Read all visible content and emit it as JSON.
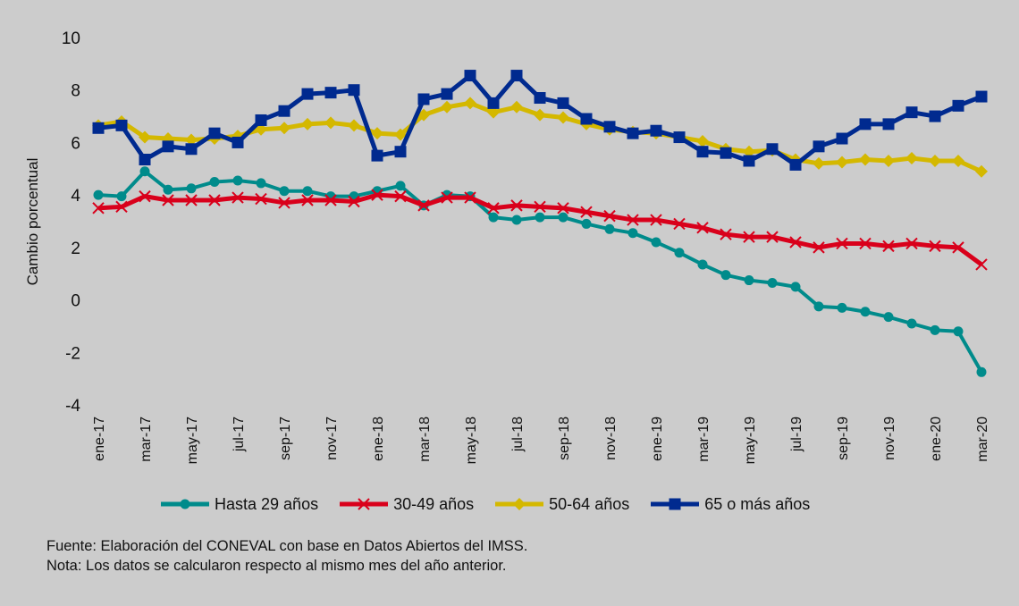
{
  "chart_data": {
    "type": "line",
    "title": "",
    "xlabel": "",
    "ylabel": "Cambio porcentual",
    "ylim": [
      -4,
      10
    ],
    "yticks": [
      "10",
      "8",
      "6",
      "4",
      "2",
      "0",
      "-2",
      "-4"
    ],
    "ytick_values": [
      10,
      8,
      6,
      4,
      2,
      0,
      -2,
      -4
    ],
    "grid": false,
    "legend_position": "bottom",
    "x": [
      "ene-17",
      "feb-17",
      "mar-17",
      "abr-17",
      "may-17",
      "jun-17",
      "jul-17",
      "ago-17",
      "sep-17",
      "oct-17",
      "nov-17",
      "dic-17",
      "ene-18",
      "feb-18",
      "mar-18",
      "abr-18",
      "may-18",
      "jun-18",
      "jul-18",
      "ago-18",
      "sep-18",
      "oct-18",
      "nov-18",
      "dic-18",
      "ene-19",
      "feb-19",
      "mar-19",
      "abr-19",
      "may-19",
      "jun-19",
      "jul-19",
      "ago-19",
      "sep-19",
      "oct-19",
      "nov-19",
      "dic-19",
      "ene-20",
      "feb-20",
      "mar-20"
    ],
    "xtick_labels": [
      "ene-17",
      "mar-17",
      "may-17",
      "jul-17",
      "sep-17",
      "nov-17",
      "ene-18",
      "mar-18",
      "may-18",
      "jul-18",
      "sep-18",
      "nov-18",
      "ene-19",
      "mar-19",
      "may-19",
      "jul-19",
      "sep-19",
      "nov-19",
      "ene-20",
      "mar-20"
    ],
    "series": [
      {
        "name": "Hasta 29 años",
        "color": "#008b8b",
        "marker": "circle",
        "values": [
          4.0,
          3.95,
          4.9,
          4.2,
          4.25,
          4.5,
          4.55,
          4.45,
          4.15,
          4.15,
          3.95,
          3.95,
          4.15,
          4.35,
          3.6,
          4.0,
          3.95,
          3.15,
          3.05,
          3.15,
          3.15,
          2.9,
          2.7,
          2.55,
          2.2,
          1.8,
          1.35,
          0.95,
          0.75,
          0.65,
          0.5,
          -0.25,
          -0.3,
          -0.45,
          -0.65,
          -0.9,
          -1.15,
          -1.2,
          -2.75
        ]
      },
      {
        "name": "30-49 años",
        "color": "#d9001b",
        "marker": "x",
        "values": [
          3.5,
          3.55,
          3.95,
          3.8,
          3.8,
          3.8,
          3.9,
          3.85,
          3.7,
          3.8,
          3.8,
          3.75,
          4.0,
          3.95,
          3.6,
          3.9,
          3.9,
          3.5,
          3.6,
          3.55,
          3.5,
          3.35,
          3.2,
          3.05,
          3.05,
          2.9,
          2.75,
          2.5,
          2.4,
          2.4,
          2.2,
          2.0,
          2.15,
          2.15,
          2.05,
          2.15,
          2.05,
          2.0,
          1.35
        ]
      },
      {
        "name": "50-64 años",
        "color": "#d4b800",
        "marker": "diamond",
        "values": [
          6.65,
          6.8,
          6.2,
          6.15,
          6.1,
          6.15,
          6.25,
          6.5,
          6.55,
          6.7,
          6.75,
          6.65,
          6.35,
          6.3,
          7.05,
          7.35,
          7.5,
          7.15,
          7.35,
          7.05,
          6.95,
          6.7,
          6.5,
          6.4,
          6.35,
          6.2,
          6.05,
          5.75,
          5.65,
          5.7,
          5.35,
          5.2,
          5.25,
          5.35,
          5.3,
          5.4,
          5.3,
          5.3,
          4.9
        ]
      },
      {
        "name": "65 o más años",
        "color": "#002a8f",
        "marker": "square",
        "values": [
          6.55,
          6.65,
          5.35,
          5.85,
          5.75,
          6.35,
          6.0,
          6.85,
          7.2,
          7.85,
          7.9,
          8.0,
          5.5,
          5.65,
          7.65,
          7.85,
          8.55,
          7.5,
          8.55,
          7.7,
          7.5,
          6.9,
          6.6,
          6.35,
          6.45,
          6.2,
          5.65,
          5.6,
          5.3,
          5.75,
          5.15,
          5.85,
          6.15,
          6.7,
          6.7,
          7.15,
          7.0,
          7.4,
          7.75
        ]
      }
    ]
  },
  "notes": {
    "source": "Fuente: Elaboración del CONEVAL con base en Datos Abiertos del IMSS.",
    "note": "Nota: Los datos se calcularon respecto al mismo mes del año anterior."
  }
}
